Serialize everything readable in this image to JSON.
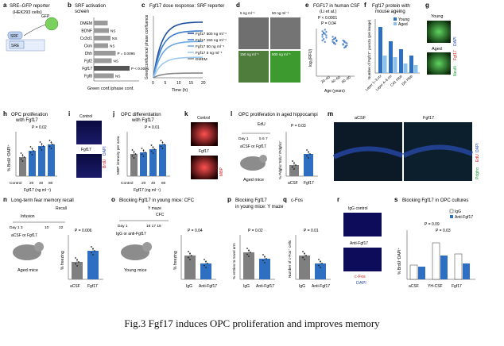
{
  "caption": "Fig.3 Fgf17 induces OPC proliferation and improves memory",
  "panels": [
    {
      "id": "a",
      "letter": "a",
      "title": "SRE–GFP reporter",
      "subtitle": "(HEK293 cells)",
      "labels": {
        "srf": "SRF",
        "sre": "SRE",
        "gfp": "GFP"
      }
    },
    {
      "id": "b",
      "letter": "b",
      "title": "SRF activation",
      "subtitle": "screen",
      "xlabel": "Green conf./phase conf.",
      "rows": [
        {
          "name": "DMEM",
          "value": 0.35,
          "sig": ""
        },
        {
          "name": "BDNF",
          "value": 0.38,
          "sig": "NS"
        },
        {
          "name": "Cx3cl1",
          "value": 0.42,
          "sig": "NS"
        },
        {
          "name": "Ckm",
          "value": 0.36,
          "sig": "NS"
        },
        {
          "name": "Dhh",
          "value": 0.55,
          "sig": "P = 0.0095"
        },
        {
          "name": "Fgf2",
          "value": 0.45,
          "sig": "NS"
        },
        {
          "name": "Fgf17",
          "value": 0.9,
          "sig": "P < 0.0001"
        },
        {
          "name": "Fgf8",
          "value": 0.5,
          "sig": "NS"
        }
      ]
    },
    {
      "id": "c",
      "letter": "c",
      "title": "Fgf17 dose response: SRF reporter",
      "xlabel": "Time (h)",
      "ylabel": "Green confluence/ phase confluence",
      "xticks": [
        "0",
        "5",
        "10",
        "15",
        "20"
      ],
      "series": [
        {
          "name": "Fgf17 500 ng ml⁻¹",
          "color": "#1f4e9e",
          "level": 0.95
        },
        {
          "name": "Fgf17 150 ng ml⁻¹",
          "color": "#3d7cc9",
          "level": 0.8
        },
        {
          "name": "Fgf17 50 ng ml⁻¹",
          "color": "#6aa6e0",
          "level": 0.62
        },
        {
          "name": "Fgf17 5 ng ml⁻¹",
          "color": "#9ec9ef",
          "level": 0.35
        },
        {
          "name": "DMEM",
          "color": "#888888",
          "level": 0.08
        }
      ]
    },
    {
      "id": "d",
      "letter": "d",
      "labels": [
        "5 ng ml⁻¹",
        "50 ng ml⁻¹",
        "150 ng ml⁻¹",
        "500 ng ml⁻¹"
      ]
    },
    {
      "id": "e",
      "letter": "e",
      "title": "FGF17 in human CSF",
      "subtitle": "(Li et al.)",
      "ylabel": "log₂(RFU)",
      "xlabel": "Age (years)",
      "categories": [
        "20–40",
        "40–60",
        "60–80"
      ],
      "stats": [
        "P < 0.0001",
        "P = 0.04"
      ]
    },
    {
      "id": "f",
      "letter": "f",
      "title": "Fgf17 protein with",
      "subtitle": "mouse ageing",
      "ylabel": "Number of Fgf17⁺ puncta (per image)",
      "categories": [
        "Layer 1–3 ctx",
        "Layer 4–6 ctx",
        "CA1 Hipp",
        "DG Hipp"
      ],
      "legend": [
        "Young",
        "Aged"
      ]
    },
    {
      "id": "g",
      "letter": "g",
      "labels": {
        "young": "Young",
        "aged": "Aged",
        "neun": "NeuN",
        "fgf17": "Fgf17",
        "dapi": "DAPI"
      }
    },
    {
      "id": "h",
      "letter": "h",
      "title": "OPC proliferation",
      "subtitle": "with Fgf17",
      "ylabel": "% BrdU⁺DAPI⁺",
      "categories": [
        "Control",
        "20",
        "40",
        "80"
      ],
      "xlabel": "Fgf17 (ng ml⁻¹)",
      "stat": "P = 0.02"
    },
    {
      "id": "i",
      "letter": "i",
      "labels": {
        "control": "Control",
        "fgf17": "Fgf17",
        "brdu": "BrdU",
        "dapi": "DAPI"
      }
    },
    {
      "id": "j",
      "letter": "j",
      "title": "OPC differentiation",
      "subtitle": "with Fgf17",
      "ylabel": "MBP intensity per area",
      "categories": [
        "Control",
        "20",
        "40",
        "80"
      ],
      "xlabel": "Fgf17 (ng ml⁻¹)",
      "stat": "P = 0.01"
    },
    {
      "id": "k",
      "letter": "k",
      "labels": {
        "control": "Control",
        "fgf17": "Fgf17",
        "mbp": "MBP"
      }
    },
    {
      "id": "l",
      "letter": "l",
      "title": "OPC proliferation in aged hippocampi",
      "labels": {
        "edu": "EdU",
        "days": "Day 1",
        "d2": "5 6 7",
        "treat": "aCSF or Fgf17",
        "mice": "Aged mice"
      },
      "ylabel": "% Pdgfrα⁺EdU⁺/Pdgfrα⁺",
      "categories": [
        "aCSF",
        "Fgf17"
      ],
      "stat": "P = 0.03"
    },
    {
      "id": "m",
      "letter": "m",
      "labels": {
        "acsf": "aCSF",
        "fgf17": "Fgf17",
        "pdgfra": "Pdgfrα",
        "edu": "EdU",
        "dapi": "DAPI"
      }
    },
    {
      "id": "n",
      "letter": "n",
      "title": "Long-term fear memory recall",
      "labels": {
        "recall": "Recall",
        "infusion": "Infusion",
        "days": "Day 1 3",
        "d2": "10",
        "d3": "22",
        "treat": "aCSF or Fgf17",
        "mice": "Aged mice"
      },
      "ylabel": "% freezing",
      "categories": [
        "aCSF",
        "Fgf17"
      ],
      "stat": "P = 0.006"
    },
    {
      "id": "o",
      "letter": "o",
      "title": "Blocking Fgf17 in young mice: CFC",
      "labels": {
        "ymaze": "Y maze",
        "cfc": "CFC",
        "days": "Day 1",
        "d2": "16 17 18",
        "treat": "IgG or anti-Fgf17",
        "mice": "Young mice"
      },
      "ylabel": "% freezing",
      "categories": [
        "IgG",
        "Anti-Fgf17"
      ],
      "stat": "P = 0.04"
    },
    {
      "id": "p",
      "letter": "p",
      "title": "Blocking Fgf17",
      "subtitle": "in young mice: Y maze",
      "ylabel": "% entries to novel arm",
      "categories": [
        "IgG",
        "Anti-Fgf17"
      ],
      "stat": "P = 0.02"
    },
    {
      "id": "q",
      "letter": "q",
      "title": "c-Fos",
      "ylabel": "Number of c-Fos⁺ cells",
      "categories": [
        "IgG",
        "Anti-Fgf17"
      ],
      "stat": "P = 0.01"
    },
    {
      "id": "r",
      "letter": "r",
      "labels": {
        "igg": "IgG control",
        "anti": "Anti-Fgf17",
        "cfos": "c-Fos",
        "dapi": "DAPI"
      }
    },
    {
      "id": "s",
      "letter": "s",
      "title": "Blocking Fgf17 in OPC cultures",
      "ylabel": "% BrdU⁺DAPI⁺",
      "categories": [
        "aCSF",
        "YH-CSF",
        "Fgf17"
      ],
      "legend": [
        "IgG",
        "Anti-Fgf17"
      ],
      "stats": [
        "P = 0.09",
        "P = 0.03"
      ]
    }
  ]
}
